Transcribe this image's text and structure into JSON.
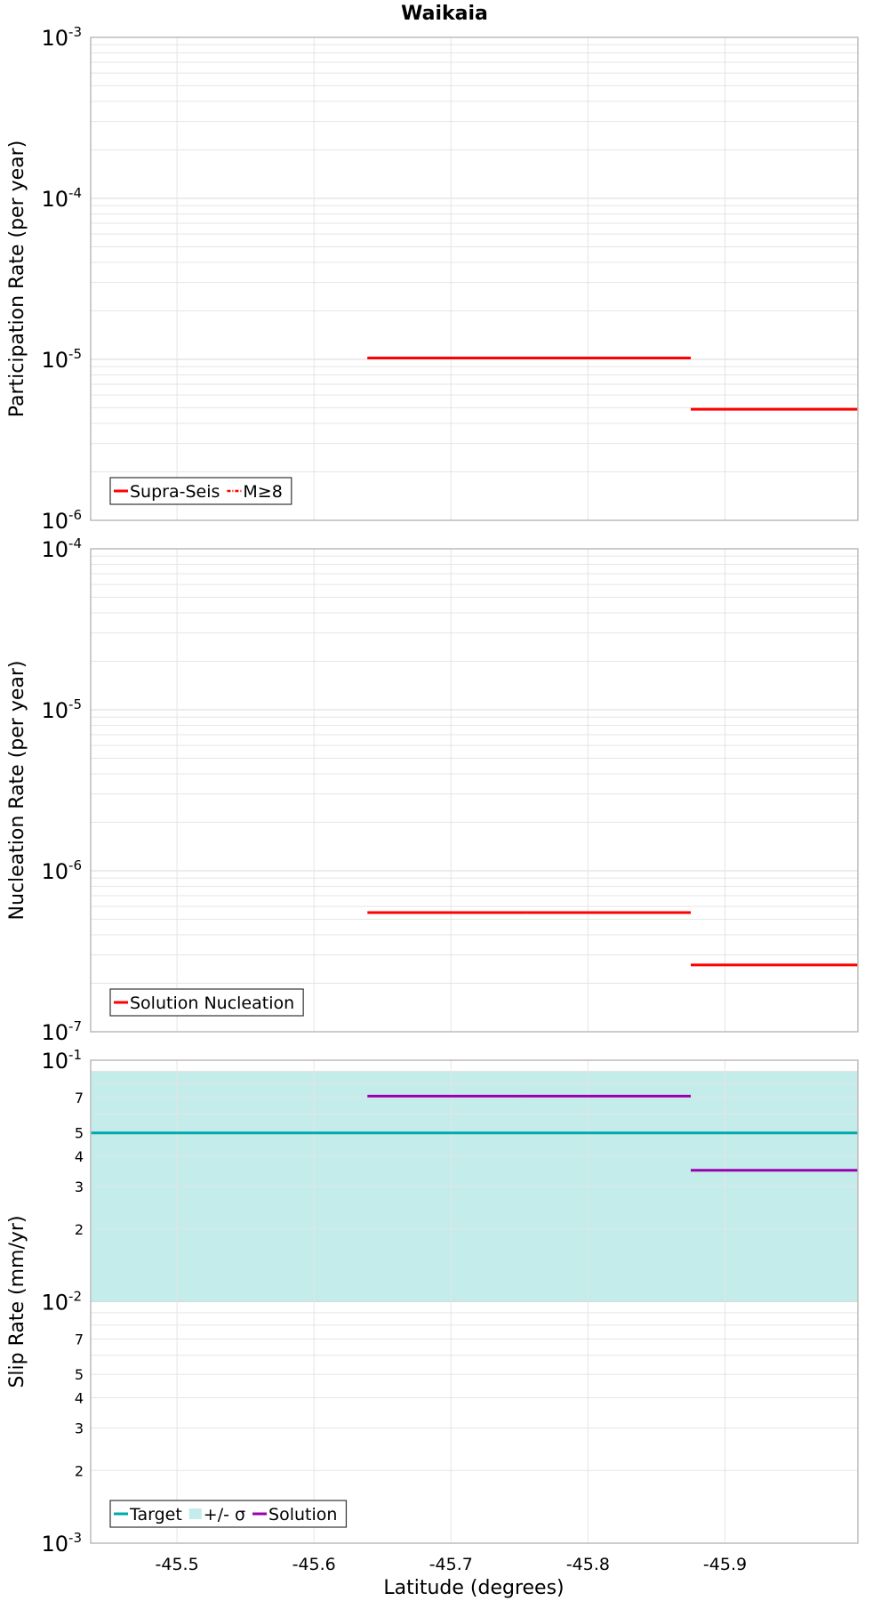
{
  "title": "Waikaia",
  "xlabel": "Latitude (degrees)",
  "colors": {
    "supra_seis": "#ff0000",
    "target": "#00aaaa",
    "sigma_band": "#c3ecea",
    "solution": "#9b00b0",
    "grid": "#e5e5e5",
    "frame": "#bbbbbb"
  },
  "chart_data": [
    {
      "type": "line",
      "title": "Waikaia",
      "xlabel": "",
      "ylabel": "Participation Rate (per year)",
      "xlim": [
        -45.437,
        -45.997
      ],
      "ylim": [
        1e-06,
        0.001
      ],
      "yscale": "log",
      "x_ticks": [
        -45.5,
        -45.6,
        -45.7,
        -45.8,
        -45.9
      ],
      "y_ticks": [
        {
          "value": 0.001,
          "base": "10",
          "exp": "-3"
        },
        {
          "value": 0.0001,
          "base": "10",
          "exp": "-4"
        },
        {
          "value": 1e-05,
          "base": "10",
          "exp": "-5"
        },
        {
          "value": 1e-06,
          "base": "10",
          "exp": "-6"
        }
      ],
      "y_minor_labels": [],
      "grid": true,
      "legend_position": "bottom-left",
      "legend": [
        {
          "label": "Supra-Seis",
          "style": "line",
          "color": "#ff0000"
        },
        {
          "label": "M≥8",
          "style": "dashdot",
          "color": "#ff0000"
        }
      ],
      "series": [
        {
          "name": "Supra-Seis",
          "color": "#ff0000",
          "style": "line",
          "segments": [
            {
              "x": [
                -45.639,
                -45.755
              ],
              "y": 1.02e-05
            },
            {
              "x": [
                -45.755,
                -45.875
              ],
              "y": 1.02e-05
            },
            {
              "x": [
                -45.875,
                -45.997
              ],
              "y": 4.9e-06
            }
          ]
        },
        {
          "name": "M≥8",
          "color": "#ff0000",
          "style": "dashdot",
          "segments": [
            {
              "x": [
                -45.639,
                -45.755
              ],
              "y": 1.02e-05
            },
            {
              "x": [
                -45.755,
                -45.875
              ],
              "y": 1.02e-05
            },
            {
              "x": [
                -45.875,
                -45.997
              ],
              "y": 4.9e-06
            }
          ]
        }
      ]
    },
    {
      "type": "line",
      "title": "",
      "xlabel": "",
      "ylabel": "Nucleation Rate (per year)",
      "xlim": [
        -45.437,
        -45.997
      ],
      "ylim": [
        1e-07,
        0.0001
      ],
      "yscale": "log",
      "x_ticks": [
        -45.5,
        -45.6,
        -45.7,
        -45.8,
        -45.9
      ],
      "y_ticks": [
        {
          "value": 0.0001,
          "base": "10",
          "exp": "-4"
        },
        {
          "value": 1e-05,
          "base": "10",
          "exp": "-5"
        },
        {
          "value": 1e-06,
          "base": "10",
          "exp": "-6"
        },
        {
          "value": 1e-07,
          "base": "10",
          "exp": "-7"
        }
      ],
      "y_minor_labels": [],
      "grid": true,
      "legend_position": "bottom-left",
      "legend": [
        {
          "label": "Solution Nucleation",
          "style": "line",
          "color": "#ff0000"
        }
      ],
      "series": [
        {
          "name": "Solution Nucleation",
          "color": "#ff0000",
          "style": "line",
          "segments": [
            {
              "x": [
                -45.639,
                -45.755
              ],
              "y": 5.5e-07
            },
            {
              "x": [
                -45.755,
                -45.875
              ],
              "y": 5.5e-07
            },
            {
              "x": [
                -45.875,
                -45.997
              ],
              "y": 2.6e-07
            }
          ]
        }
      ]
    },
    {
      "type": "line",
      "title": "",
      "xlabel": "Latitude (degrees)",
      "ylabel": "Slip Rate (mm/yr)",
      "xlim": [
        -45.437,
        -45.997
      ],
      "ylim": [
        0.001,
        0.1
      ],
      "yscale": "log",
      "x_ticks": [
        -45.5,
        -45.6,
        -45.7,
        -45.8,
        -45.9
      ],
      "y_ticks": [
        {
          "value": 0.1,
          "base": "10",
          "exp": "-1"
        },
        {
          "value": 0.01,
          "base": "10",
          "exp": "-2"
        },
        {
          "value": 0.001,
          "base": "10",
          "exp": "-3"
        }
      ],
      "y_minor_labels": [
        {
          "value": 0.07,
          "label": "7"
        },
        {
          "value": 0.05,
          "label": "5"
        },
        {
          "value": 0.04,
          "label": "4"
        },
        {
          "value": 0.03,
          "label": "3"
        },
        {
          "value": 0.02,
          "label": "2"
        },
        {
          "value": 0.007,
          "label": "7"
        },
        {
          "value": 0.005,
          "label": "5"
        },
        {
          "value": 0.004,
          "label": "4"
        },
        {
          "value": 0.003,
          "label": "3"
        },
        {
          "value": 0.002,
          "label": "2"
        }
      ],
      "grid": true,
      "legend_position": "bottom-left",
      "legend": [
        {
          "label": "Target",
          "style": "line",
          "color": "#00aaaa"
        },
        {
          "label": "+/- σ",
          "style": "box",
          "color": "#c3ecea"
        },
        {
          "label": "Solution",
          "style": "line",
          "color": "#9b00b0"
        }
      ],
      "band": {
        "name": "+/- σ",
        "color": "#c3ecea",
        "x": [
          -45.437,
          -45.997
        ],
        "y_low": 0.01,
        "y_high": 0.09
      },
      "series": [
        {
          "name": "Target",
          "color": "#00aaaa",
          "style": "line",
          "segments": [
            {
              "x": [
                -45.437,
                -45.997
              ],
              "y": 0.05
            }
          ]
        },
        {
          "name": "Solution",
          "color": "#9b00b0",
          "style": "line",
          "segments": [
            {
              "x": [
                -45.639,
                -45.755
              ],
              "y": 0.071
            },
            {
              "x": [
                -45.755,
                -45.875
              ],
              "y": 0.071
            },
            {
              "x": [
                -45.875,
                -45.997
              ],
              "y": 0.035
            }
          ]
        }
      ]
    }
  ]
}
